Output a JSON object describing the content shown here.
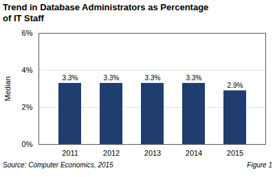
{
  "chart_data": {
    "type": "bar",
    "title": "Trend in Database Administrators as Percentage\nof IT Staff",
    "categories": [
      "2011",
      "2012",
      "2013",
      "2014",
      "2015"
    ],
    "values": [
      3.3,
      3.3,
      3.3,
      3.3,
      2.9
    ],
    "value_labels": [
      "3.3%",
      "3.3%",
      "3.3%",
      "3.3%",
      "2.9%"
    ],
    "data_labels": true,
    "color": "#1f3d6e",
    "ylabel": "Median",
    "ylim": [
      0,
      6
    ],
    "yticks": [
      {
        "value": 0,
        "label": "0%"
      },
      {
        "value": 2,
        "label": "2%"
      },
      {
        "value": 4,
        "label": "4%"
      },
      {
        "value": 6,
        "label": "6%"
      }
    ],
    "grid": true,
    "annotations": [
      "Source: Computer Economics, 2015",
      "Figure 1"
    ]
  }
}
